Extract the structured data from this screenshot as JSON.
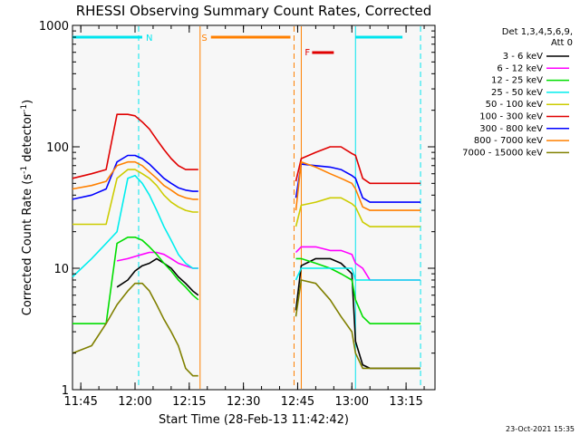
{
  "chart_data": {
    "type": "line",
    "title": "RHESSI Observing Summary Count Rates, Corrected",
    "xlabel": "Start Time (28-Feb-13 11:42:42)",
    "ylabel": "Corrected Count Rate (s⁻¹ detector⁻¹)",
    "ylabel_main": "Corrected Count Rate (s",
    "ylabel_sup1": "-1",
    "ylabel_mid": " detector",
    "ylabel_sup2": "-1",
    "ylabel_end": ")",
    "y_scale": "log",
    "ylim": [
      1,
      1000
    ],
    "xlim": [
      "11:42:42",
      "13:23:00"
    ],
    "y_ticks": [
      {
        "value": 1,
        "label": "1"
      },
      {
        "value": 10,
        "label": "10"
      },
      {
        "value": 100,
        "label": "100"
      },
      {
        "value": 1000,
        "label": "1000"
      }
    ],
    "x_ticks": [
      {
        "time": "11:45",
        "label": "11:45"
      },
      {
        "time": "12:00",
        "label": "12:00"
      },
      {
        "time": "12:15",
        "label": "12:15"
      },
      {
        "time": "12:30",
        "label": "12:30"
      },
      {
        "time": "12:45",
        "label": "12:45"
      },
      {
        "time": "13:00",
        "label": "13:00"
      },
      {
        "time": "13:15",
        "label": "13:15"
      }
    ],
    "legend_placement": "right",
    "legend_header": [
      "Det 1,3,4,5,6,9,",
      "Att 0"
    ],
    "footer_date": "23-Oct-2021 15:35",
    "flags": [
      {
        "label": "N",
        "color": "#00e5ee",
        "segments": [
          [
            "11:42:42",
            "12:02"
          ],
          [
            "13:01",
            "13:14"
          ]
        ],
        "label_at": "12:02"
      },
      {
        "label": "S",
        "color": "#ff8000",
        "segments": [
          [
            "12:21",
            "12:43"
          ]
        ],
        "label_at": "12:20"
      },
      {
        "label": "F",
        "color": "#e00000",
        "segments": [
          [
            "12:49",
            "12:55"
          ]
        ],
        "label_at": "12:47"
      }
    ],
    "vertical_lines": [
      {
        "time": "12:01",
        "color": "#00e5ee",
        "style": "dashed"
      },
      {
        "time": "12:18",
        "color": "#ff8000",
        "style": "solid"
      },
      {
        "time": "12:44",
        "color": "#ff8000",
        "style": "dashed"
      },
      {
        "time": "12:46",
        "color": "#ff8000",
        "style": "solid"
      },
      {
        "time": "13:01",
        "color": "#00e5ee",
        "style": "solid"
      },
      {
        "time": "13:19",
        "color": "#00e5ee",
        "style": "dashed"
      }
    ],
    "series": [
      {
        "name": "3 - 6 keV",
        "color": "#000000",
        "x": [
          "11:42:42",
          "11:52",
          "11:55",
          "11:58",
          "12:00",
          "12:02",
          "12:04",
          "12:06",
          "12:08",
          "12:10",
          "12:12",
          "12:14",
          "12:16",
          "12:17:30",
          "12:44:30",
          "12:46",
          "12:50",
          "12:54",
          "12:57",
          "13:00",
          "13:01",
          "13:03",
          "13:05",
          "13:10",
          "13:15",
          "13:19"
        ],
        "y": [
          null,
          null,
          7,
          8,
          9.5,
          10.5,
          11,
          12,
          11,
          10,
          8.5,
          7.5,
          6.5,
          6,
          4.5,
          10.5,
          12,
          12,
          11,
          9,
          2.5,
          1.6,
          1.5,
          1.5,
          1.5,
          1.5
        ]
      },
      {
        "name": "6 - 12 keV",
        "color": "#ff00ff",
        "x": [
          "11:42:42",
          "11:52",
          "11:55",
          "11:58",
          "12:00",
          "12:02",
          "12:04",
          "12:06",
          "12:08",
          "12:10",
          "12:12",
          "12:14",
          "12:16",
          "12:17:30",
          "12:44:30",
          "12:46",
          "12:50",
          "12:54",
          "12:57",
          "13:00",
          "13:01",
          "13:03",
          "13:05",
          "13:10",
          "13:15",
          "13:19"
        ],
        "y": [
          null,
          null,
          11.5,
          12,
          12.5,
          13,
          13.5,
          13.5,
          13,
          12,
          11,
          10.5,
          10,
          10,
          13.5,
          15,
          15,
          14,
          14,
          13,
          11,
          10,
          8,
          8,
          8,
          8
        ]
      },
      {
        "name": "12 - 25 keV",
        "color": "#00dd00",
        "x": [
          "11:42:42",
          "11:52",
          "11:55",
          "11:58",
          "12:00",
          "12:02",
          "12:04",
          "12:06",
          "12:08",
          "12:10",
          "12:12",
          "12:14",
          "12:16",
          "12:17:30",
          "12:44:30",
          "12:46",
          "12:50",
          "12:54",
          "12:57",
          "13:00",
          "13:01",
          "13:03",
          "13:05",
          "13:10",
          "13:15",
          "13:19"
        ],
        "y": [
          3.5,
          3.5,
          16,
          18,
          18,
          17,
          15,
          13,
          11,
          9.5,
          8,
          7,
          6,
          5.5,
          12,
          12,
          11,
          10,
          9,
          8,
          5.5,
          4,
          3.5,
          3.5,
          3.5,
          3.5
        ]
      },
      {
        "name": "25 - 50 keV",
        "color": "#00eeee",
        "x": [
          "11:42:42",
          "11:48",
          "11:52",
          "11:55",
          "11:58",
          "12:00",
          "12:02",
          "12:04",
          "12:06",
          "12:08",
          "12:10",
          "12:12",
          "12:14",
          "12:16",
          "12:17:30",
          "12:44:30",
          "12:46",
          "12:50",
          "12:54",
          "12:57",
          "13:00",
          "13:01",
          "13:03",
          "13:05",
          "13:10",
          "13:15",
          "13:19"
        ],
        "y": [
          8.5,
          12,
          16,
          20,
          55,
          58,
          50,
          40,
          30,
          22,
          17,
          13,
          11,
          10,
          10,
          8,
          10,
          10,
          10,
          10,
          10,
          8,
          8,
          8,
          8,
          8,
          8
        ]
      },
      {
        "name": "50 - 100 keV",
        "color": "#cccc00",
        "x": [
          "11:42:42",
          "11:48",
          "11:52",
          "11:55",
          "11:58",
          "12:00",
          "12:02",
          "12:04",
          "12:06",
          "12:08",
          "12:10",
          "12:12",
          "12:14",
          "12:16",
          "12:17:30",
          "12:44:30",
          "12:46",
          "12:50",
          "12:54",
          "12:57",
          "13:00",
          "13:01",
          "13:03",
          "13:05",
          "13:10",
          "13:15",
          "13:19"
        ],
        "y": [
          23,
          23,
          23,
          55,
          65,
          65,
          60,
          55,
          48,
          40,
          35,
          32,
          30,
          29,
          29,
          22,
          33,
          35,
          38,
          38,
          34,
          32,
          24,
          22,
          22,
          22,
          22
        ]
      },
      {
        "name": "100 - 300 keV",
        "color": "#e00000",
        "x": [
          "11:42:42",
          "11:48",
          "11:52",
          "11:55",
          "11:58",
          "12:00",
          "12:02",
          "12:04",
          "12:06",
          "12:08",
          "12:10",
          "12:12",
          "12:14",
          "12:16",
          "12:17:30",
          "12:44:30",
          "12:46",
          "12:50",
          "12:54",
          "12:57",
          "13:00",
          "13:01",
          "13:03",
          "13:05",
          "13:10",
          "13:15",
          "13:19"
        ],
        "y": [
          55,
          60,
          65,
          185,
          185,
          180,
          160,
          140,
          115,
          95,
          80,
          70,
          65,
          65,
          65,
          52,
          80,
          90,
          100,
          100,
          88,
          85,
          55,
          50,
          50,
          50,
          50
        ]
      },
      {
        "name": "300 - 800 keV",
        "color": "#0000ff",
        "x": [
          "11:42:42",
          "11:48",
          "11:52",
          "11:55",
          "11:58",
          "12:00",
          "12:02",
          "12:04",
          "12:06",
          "12:08",
          "12:10",
          "12:12",
          "12:14",
          "12:16",
          "12:17:30",
          "12:44:30",
          "12:46",
          "12:50",
          "12:54",
          "12:57",
          "13:00",
          "13:01",
          "13:03",
          "13:05",
          "13:10",
          "13:15",
          "13:19"
        ],
        "y": [
          37,
          40,
          45,
          75,
          85,
          85,
          80,
          72,
          63,
          55,
          50,
          46,
          44,
          43,
          43,
          38,
          72,
          70,
          68,
          65,
          58,
          55,
          38,
          35,
          35,
          35,
          35
        ]
      },
      {
        "name": "800 - 7000 keV",
        "color": "#ff8000",
        "x": [
          "11:42:42",
          "11:48",
          "11:52",
          "11:55",
          "11:58",
          "12:00",
          "12:02",
          "12:04",
          "12:06",
          "12:08",
          "12:10",
          "12:12",
          "12:14",
          "12:16",
          "12:17:30",
          "12:44:30",
          "12:46",
          "12:50",
          "12:54",
          "12:57",
          "13:00",
          "13:01",
          "13:03",
          "13:05",
          "13:10",
          "13:15",
          "13:19"
        ],
        "y": [
          45,
          48,
          52,
          70,
          75,
          75,
          70,
          62,
          55,
          48,
          44,
          40,
          38,
          37,
          37,
          30,
          75,
          68,
          60,
          55,
          50,
          45,
          32,
          30,
          30,
          30,
          30
        ]
      },
      {
        "name": "7000 - 15000 keV",
        "color": "#808000",
        "x": [
          "11:42:42",
          "11:48",
          "11:52",
          "11:55",
          "11:58",
          "12:00",
          "12:02",
          "12:04",
          "12:06",
          "12:08",
          "12:10",
          "12:12",
          "12:14",
          "12:16",
          "12:17:30",
          "12:44:30",
          "12:46",
          "12:50",
          "12:54",
          "12:57",
          "13:00",
          "13:01",
          "13:03",
          "13:05",
          "13:10",
          "13:15",
          "13:19"
        ],
        "y": [
          2,
          2.3,
          3.5,
          5,
          6.5,
          7.5,
          7.5,
          6.5,
          5,
          3.8,
          3,
          2.3,
          1.5,
          1.3,
          1.3,
          4,
          8,
          7.5,
          5.5,
          4,
          3,
          2,
          1.5,
          1.5,
          1.5,
          1.5,
          1.5
        ]
      }
    ]
  }
}
